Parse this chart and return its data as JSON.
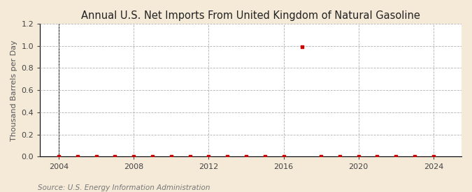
{
  "title": "Annual U.S. Net Imports From United Kingdom of Natural Gasoline",
  "ylabel": "Thousand Barrels per Day",
  "source_text": "Source: U.S. Energy Information Administration",
  "background_color": "#f5ead8",
  "plot_bg_color": "#ffffff",
  "grid_color": "#aaaaaa",
  "marker_color": "#cc0000",
  "years": [
    2004,
    2005,
    2006,
    2007,
    2008,
    2009,
    2010,
    2011,
    2012,
    2013,
    2014,
    2015,
    2016,
    2017,
    2018,
    2019,
    2020,
    2021,
    2022,
    2023,
    2024
  ],
  "values": [
    0.0,
    0.0,
    0.0,
    0.0,
    0.0,
    0.0,
    0.0,
    0.0,
    0.0,
    0.0,
    0.0,
    0.0,
    0.0,
    0.99,
    0.0,
    0.0,
    0.0,
    0.0,
    0.0,
    0.0,
    0.0
  ],
  "xlim": [
    2003.0,
    2025.5
  ],
  "ylim": [
    0.0,
    1.2
  ],
  "xticks": [
    2004,
    2008,
    2012,
    2016,
    2020,
    2024
  ],
  "yticks": [
    0.0,
    0.2,
    0.4,
    0.6,
    0.8,
    1.0,
    1.2
  ],
  "title_fontsize": 10.5,
  "label_fontsize": 8,
  "tick_fontsize": 8,
  "source_fontsize": 7.5
}
